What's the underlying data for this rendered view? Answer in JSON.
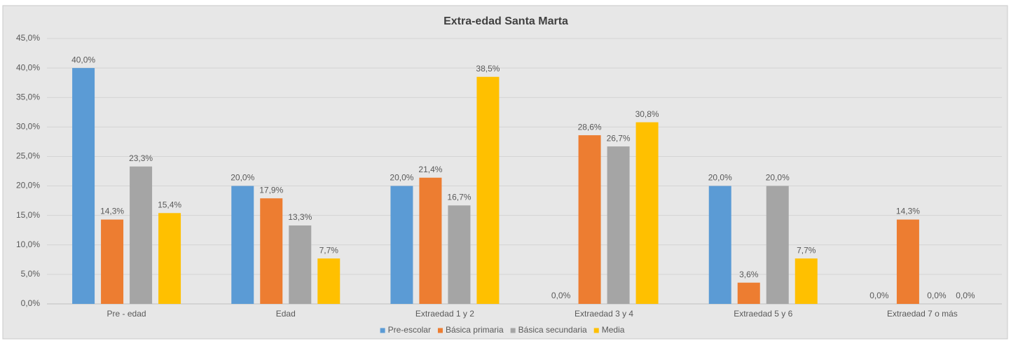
{
  "chart_data": {
    "type": "bar",
    "title": "Extra-edad Santa Marta",
    "categories": [
      "Pre - edad",
      "Edad",
      "Extraedad 1 y 2",
      "Extraedad 3 y 4",
      "Extraedad 5 y 6",
      "Extraedad 7 o más"
    ],
    "series": [
      {
        "name": "Pre-escolar",
        "color": "#5b9bd5",
        "values": [
          40,
          20,
          20,
          0,
          20,
          0
        ],
        "value_labels": [
          "40,0%",
          "20,0%",
          "20,0%",
          "0,0%",
          "20,0%",
          "0,0%"
        ]
      },
      {
        "name": "Básica primaria",
        "color": "#ed7d31",
        "values": [
          14.3,
          17.9,
          21.4,
          28.6,
          3.6,
          14.3
        ],
        "value_labels": [
          "14,3%",
          "17,9%",
          "21,4%",
          "28,6%",
          "3,6%",
          "14,3%"
        ]
      },
      {
        "name": "Básica secundaria",
        "color": "#a5a5a5",
        "values": [
          23.3,
          13.3,
          16.7,
          26.7,
          20,
          0
        ],
        "value_labels": [
          "23,3%",
          "13,3%",
          "16,7%",
          "26,7%",
          "20,0%",
          "0,0%"
        ]
      },
      {
        "name": "Media",
        "color": "#ffc000",
        "values": [
          15.4,
          7.7,
          38.5,
          30.8,
          7.7,
          0
        ],
        "value_labels": [
          "15,4%",
          "7,7%",
          "38,5%",
          "30,8%",
          "7,7%",
          "0,0%"
        ]
      }
    ],
    "ylim": [
      0,
      45
    ],
    "yticks": [
      {
        "value": 0,
        "label": "0,0%"
      },
      {
        "value": 5,
        "label": "5,0%"
      },
      {
        "value": 10,
        "label": "10,0%"
      },
      {
        "value": 15,
        "label": "15,0%"
      },
      {
        "value": 20,
        "label": "20,0%"
      },
      {
        "value": 25,
        "label": "25,0%"
      },
      {
        "value": 30,
        "label": "30,0%"
      },
      {
        "value": 35,
        "label": "35,0%"
      },
      {
        "value": 40,
        "label": "40,0%"
      },
      {
        "value": 45,
        "label": "45,0%"
      }
    ],
    "grid": true,
    "legend": "bottom"
  }
}
